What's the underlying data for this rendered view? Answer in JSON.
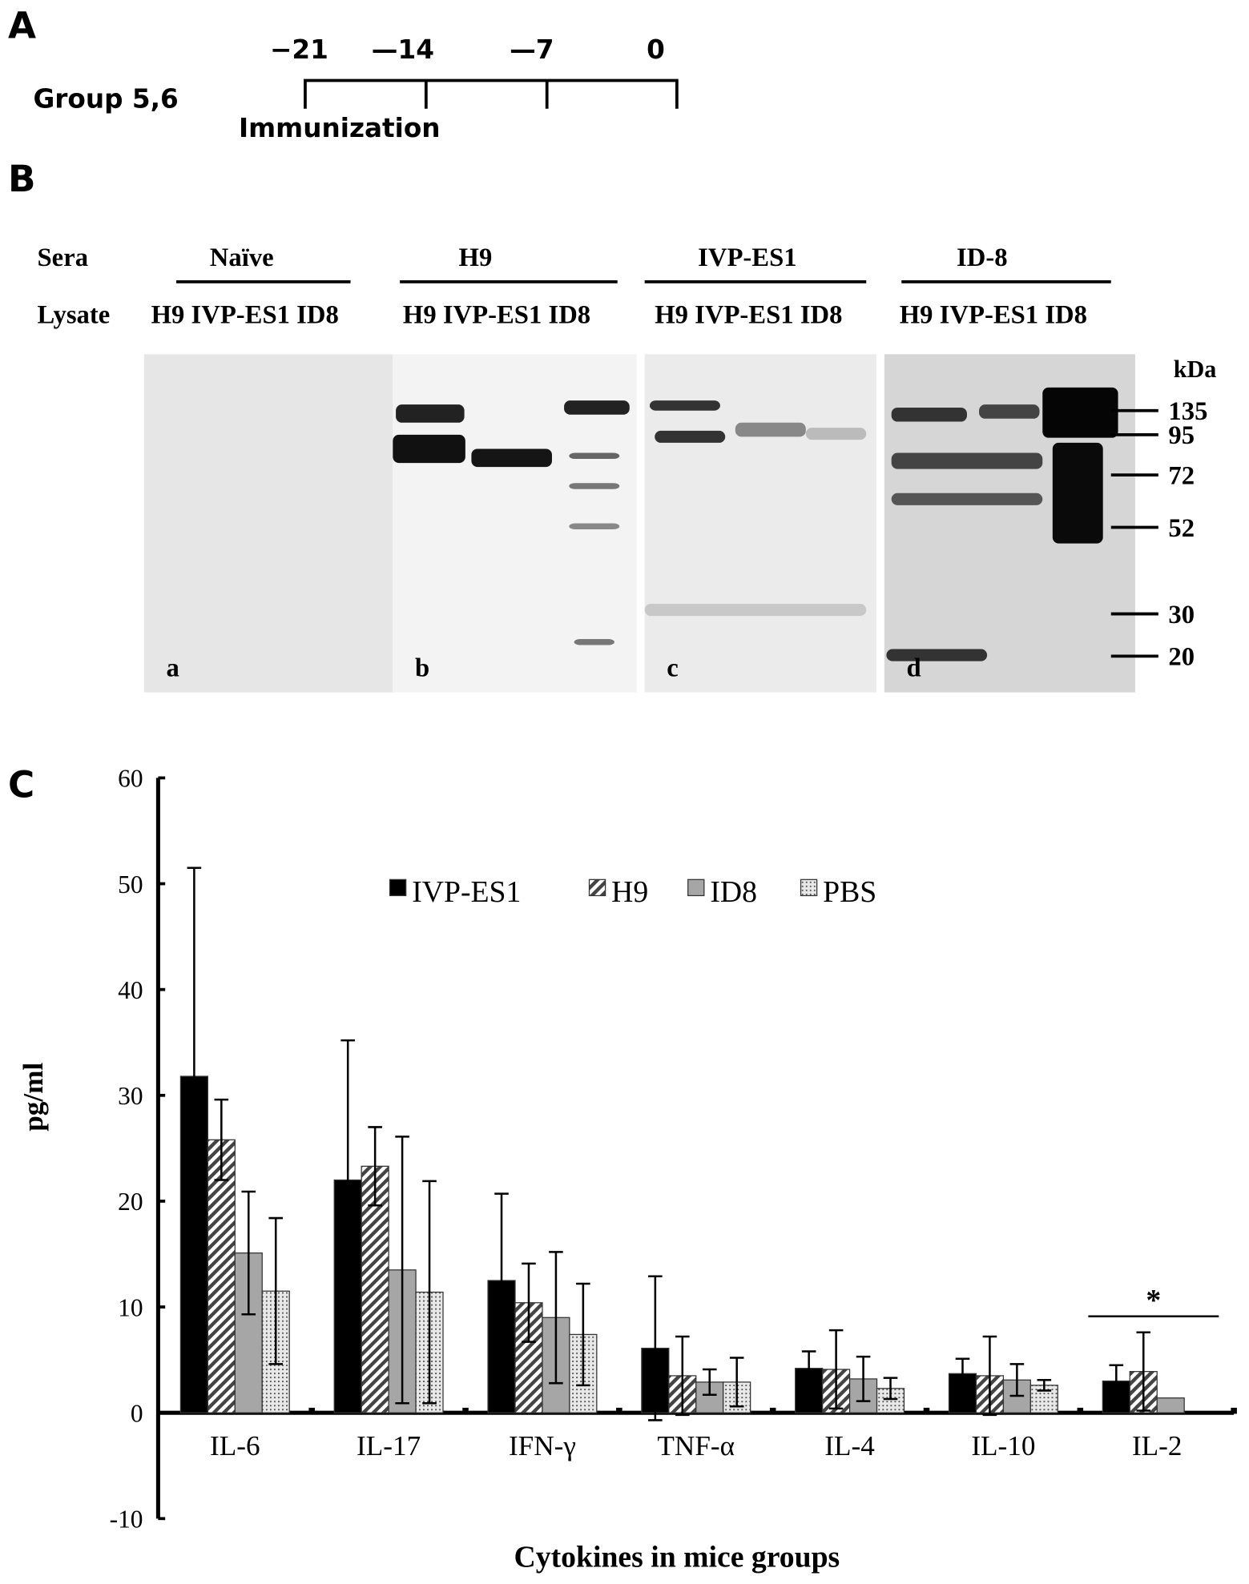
{
  "panel_a": {
    "label": "A",
    "group": "Group 5,6",
    "days": [
      "−21",
      "—14",
      "—7",
      "0"
    ],
    "event": "Immunization"
  },
  "panel_b": {
    "label": "B",
    "sera_title": "Sera",
    "lysate_title": "Lysate",
    "groups": [
      {
        "sera": "Naïve",
        "lysates": [
          "H9",
          "IVP-ES1",
          "ID8"
        ],
        "blot": "a"
      },
      {
        "sera": "H9",
        "lysates": [
          "H9",
          "IVP-ES1",
          "ID8"
        ],
        "blot": "b"
      },
      {
        "sera": "IVP-ES1",
        "lysates": [
          "H9",
          "IVP-ES1",
          "ID8"
        ],
        "blot": "c"
      },
      {
        "sera": "ID-8",
        "lysates": [
          "H9",
          "IVP-ES1",
          "ID8"
        ],
        "blot": "d"
      }
    ],
    "marker_unit": "kDa",
    "markers": [
      "135",
      "95",
      "72",
      "52",
      "30",
      "20"
    ]
  },
  "panel_c": {
    "label": "C"
  },
  "chart_data": {
    "type": "bar",
    "ylabel": "pg/ml",
    "xlabel": "Cytokines in mice groups",
    "categories": [
      "IL-6",
      "IL-17",
      "IFN-γ",
      "TNF-α",
      "IL-4",
      "IL-10",
      "IL-2"
    ],
    "series": [
      {
        "name": "IVP-ES1",
        "color": "#000000",
        "pattern": "solid",
        "values": [
          31.8,
          22,
          12.5,
          6.1,
          4.2,
          3.7,
          3
        ],
        "errors": [
          19.7,
          13.2,
          8.2,
          6.8,
          1.6,
          1.4,
          1.5
        ]
      },
      {
        "name": "H9",
        "color": "#444444",
        "pattern": "hatch",
        "values": [
          25.8,
          23.3,
          10.4,
          3.5,
          4.1,
          3.5,
          3.9
        ],
        "errors": [
          3.8,
          3.7,
          3.7,
          3.7,
          3.7,
          3.7,
          3.7
        ]
      },
      {
        "name": "ID8",
        "color": "#a6a6a6",
        "pattern": "solid",
        "values": [
          15.1,
          13.5,
          9,
          2.9,
          3.2,
          3.1,
          1.4
        ],
        "errors": [
          5.8,
          12.6,
          6.2,
          1.2,
          2.1,
          1.5,
          null
        ]
      },
      {
        "name": "PBS",
        "color": "#777777",
        "pattern": "dots",
        "values": [
          11.5,
          11.4,
          7.4,
          2.9,
          2.3,
          2.6,
          null
        ],
        "errors": [
          6.9,
          10.5,
          4.8,
          2.3,
          1.0,
          0.5,
          null
        ]
      }
    ],
    "ylim": [
      -10,
      60
    ],
    "yticks": [
      -10,
      0,
      10,
      20,
      30,
      40,
      50,
      60
    ],
    "annotation": {
      "text": "*",
      "categories": [
        6
      ]
    },
    "legend": "top"
  }
}
